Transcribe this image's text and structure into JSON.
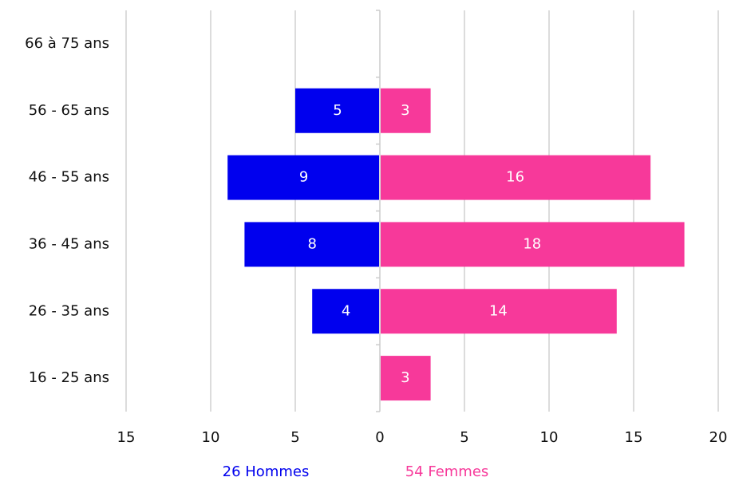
{
  "chart_data": {
    "type": "pyramid",
    "categories": [
      "66 à 75 ans",
      "56 - 65 ans",
      "46 - 55 ans",
      "36 - 45 ans",
      "26 - 35 ans",
      "16 - 25 ans"
    ],
    "series": [
      {
        "name": "26 Hommes",
        "color": "#0000ee",
        "values": [
          null,
          5,
          9,
          8,
          4,
          null
        ]
      },
      {
        "name": "54 Femmes",
        "color": "#f7399a",
        "values": [
          null,
          3,
          16,
          18,
          14,
          3
        ]
      }
    ],
    "xlim": [
      -15,
      20
    ],
    "xticks": [
      {
        "value": -15,
        "label": "15"
      },
      {
        "value": -10,
        "label": "10"
      },
      {
        "value": -5,
        "label": "5"
      },
      0,
      5,
      10,
      15,
      20
    ],
    "grid": true
  }
}
